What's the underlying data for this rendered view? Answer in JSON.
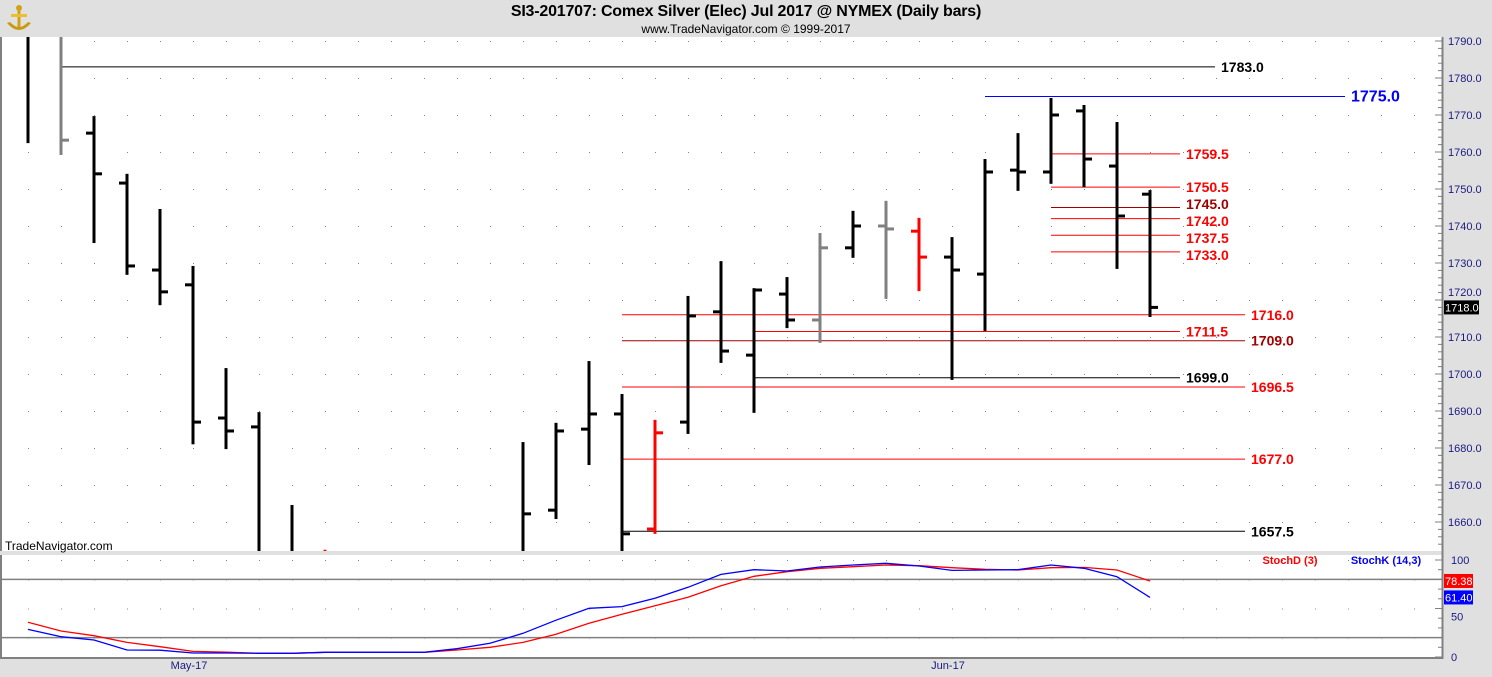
{
  "header": {
    "title": "SI3-201707:  Comex Silver (Elec) Jul 2017 @ NYMEX  (Daily bars)",
    "subtitle": "www.TradeNavigator.com © 1999-2017",
    "logo_icon": "gold-anchor-logo-icon"
  },
  "watermark": "TradeNavigator.com",
  "colors": {
    "up_bar": "#000000",
    "gray_bar": "#808080",
    "red_bar": "#ff0000",
    "stoch_k": "#0000ff",
    "stoch_d": "#ff0000",
    "axis_text": "#1a1a80"
  },
  "chart_data": [
    {
      "type": "ohlc",
      "ylim": [
        1652,
        1792
      ],
      "yticks": [
        1660,
        1670,
        1680,
        1690,
        1700,
        1710,
        1720,
        1730,
        1740,
        1750,
        1760,
        1770,
        1780,
        1790
      ],
      "ytick_labels": [
        "1660.0",
        "1670.0",
        "1680.0",
        "1690.0",
        "1700.0",
        "1710.0",
        "1720.0",
        "1730.0",
        "1740.0",
        "1750.0",
        "1760.0",
        "1770.0",
        "1780.0",
        "1790.0"
      ],
      "last_price_label": "1718.0",
      "x_labels": [
        {
          "bar": 5,
          "text": "May-17"
        },
        {
          "bar": 28,
          "text": "Jun-17"
        }
      ],
      "grid": "dotted",
      "bars": [
        {
          "o": null,
          "h": null,
          "l": 1762.4,
          "c": null,
          "color": "black"
        },
        {
          "o": null,
          "h": null,
          "l": 1759.2,
          "c": 1763.2,
          "color": "gray"
        },
        {
          "o": 1765.1,
          "h": 1769.7,
          "l": 1735.4,
          "c": 1754.1,
          "color": "black"
        },
        {
          "o": 1751.6,
          "h": 1754.1,
          "l": 1726.8,
          "c": 1729.2,
          "color": "black"
        },
        {
          "o": 1728.1,
          "h": 1744.6,
          "l": 1718.6,
          "c": 1722.2,
          "color": "black"
        },
        {
          "o": 1724.1,
          "h": 1729.2,
          "l": 1681.0,
          "c": 1687.0,
          "color": "black"
        },
        {
          "o": 1688.1,
          "h": 1701.6,
          "l": 1679.7,
          "c": 1684.6,
          "color": "black"
        },
        {
          "o": 1685.7,
          "h": 1689.7,
          "l": null,
          "c": null,
          "color": "black"
        },
        {
          "o": null,
          "h": 1664.6,
          "l": null,
          "c": null,
          "color": "black"
        },
        {
          "o": null,
          "h": 1652.5,
          "l": null,
          "c": null,
          "color": "red"
        },
        {
          "o": null,
          "h": null,
          "l": null,
          "c": null,
          "color": "black"
        },
        {
          "o": null,
          "h": null,
          "l": null,
          "c": null,
          "color": "black"
        },
        {
          "o": null,
          "h": null,
          "l": null,
          "c": null,
          "color": "black"
        },
        {
          "o": null,
          "h": null,
          "l": null,
          "c": null,
          "color": "black"
        },
        {
          "o": null,
          "h": null,
          "l": null,
          "c": null,
          "color": "black"
        },
        {
          "o": null,
          "h": 1681.6,
          "l": null,
          "c": 1662.2,
          "color": "black"
        },
        {
          "o": 1663.2,
          "h": 1686.8,
          "l": 1660.8,
          "c": 1684.6,
          "color": "black"
        },
        {
          "o": 1685.1,
          "h": 1703.5,
          "l": 1675.4,
          "c": 1689.2,
          "color": "black"
        },
        {
          "o": 1689.2,
          "h": 1694.6,
          "l": null,
          "c": 1656.8,
          "color": "black"
        },
        {
          "o": 1658.1,
          "h": 1687.6,
          "l": 1656.8,
          "c": 1684.1,
          "color": "red"
        },
        {
          "o": 1687.0,
          "h": 1721.1,
          "l": 1683.8,
          "c": 1715.7,
          "color": "black"
        },
        {
          "o": 1716.8,
          "h": 1730.5,
          "l": 1703.0,
          "c": 1706.2,
          "color": "black"
        },
        {
          "o": 1705.1,
          "h": 1723.2,
          "l": 1689.5,
          "c": 1722.7,
          "color": "black"
        },
        {
          "o": 1721.6,
          "h": 1726.2,
          "l": 1712.4,
          "c": 1714.6,
          "color": "black"
        },
        {
          "o": 1714.6,
          "h": 1738.1,
          "l": 1708.4,
          "c": 1734.1,
          "color": "gray"
        },
        {
          "o": 1734.1,
          "h": 1744.1,
          "l": 1731.4,
          "c": 1740.0,
          "color": "black"
        },
        {
          "o": 1740.0,
          "h": 1746.8,
          "l": 1720.3,
          "c": 1739.2,
          "color": "gray"
        },
        {
          "o": 1738.6,
          "h": 1742.2,
          "l": 1722.4,
          "c": 1731.6,
          "color": "red"
        },
        {
          "o": 1731.6,
          "h": 1737.0,
          "l": 1698.4,
          "c": 1728.1,
          "color": "black"
        },
        {
          "o": 1727.0,
          "h": 1758.1,
          "l": 1711.6,
          "c": 1754.6,
          "color": "black"
        },
        {
          "o": 1755.1,
          "h": 1765.1,
          "l": 1749.5,
          "c": 1754.6,
          "color": "black"
        },
        {
          "o": 1754.6,
          "h": 1774.6,
          "l": 1751.4,
          "c": 1770.0,
          "color": "black"
        },
        {
          "o": 1771.1,
          "h": 1772.7,
          "l": 1750.5,
          "c": 1758.1,
          "color": "black"
        },
        {
          "o": 1756.2,
          "h": 1768.1,
          "l": 1728.4,
          "c": 1742.7,
          "color": "black"
        },
        {
          "o": 1748.6,
          "h": 1749.7,
          "l": 1715.4,
          "c": 1718.0,
          "color": "black"
        }
      ],
      "levels": [
        {
          "value": 1783.0,
          "label": "1783.0",
          "color": "#000000"
        },
        {
          "value": 1775.0,
          "label": "1775.0",
          "color": "#0000ff"
        },
        {
          "value": 1759.5,
          "label": "1759.5",
          "color": "#ff0000"
        },
        {
          "value": 1750.5,
          "label": "1750.5",
          "color": "#ff0000"
        },
        {
          "value": 1745.0,
          "label": "1745.0",
          "color": "#a00000"
        },
        {
          "value": 1742.0,
          "label": "1742.0",
          "color": "#ff0000"
        },
        {
          "value": 1737.5,
          "label": "1737.5",
          "color": "#ff0000"
        },
        {
          "value": 1733.0,
          "label": "1733.0",
          "color": "#ff0000"
        },
        {
          "value": 1716.0,
          "label": "1716.0",
          "color": "#ff0000"
        },
        {
          "value": 1711.5,
          "label": "1711.5",
          "color": "#ff0000"
        },
        {
          "value": 1709.0,
          "label": "1709.0",
          "color": "#a00000"
        },
        {
          "value": 1699.0,
          "label": "1699.0",
          "color": "#000000"
        },
        {
          "value": 1696.5,
          "label": "1696.5",
          "color": "#ff0000"
        },
        {
          "value": 1677.0,
          "label": "1677.0",
          "color": "#ff0000"
        },
        {
          "value": 1657.5,
          "label": "1657.5",
          "color": "#000000"
        }
      ]
    },
    {
      "type": "line",
      "ylim": [
        0,
        100
      ],
      "yticks": [
        0,
        50,
        100
      ],
      "ytick_labels": [
        "0",
        "50",
        "100"
      ],
      "reference_lines": [
        20,
        80
      ],
      "series": [
        {
          "name": "StochD (3)",
          "color": "#ff0000",
          "last_label": "78.38",
          "values": [
            35.8,
            26.8,
            22.0,
            15.1,
            10.6,
            5.8,
            5.0,
            3.8,
            3.8,
            4.8,
            4.8,
            4.8,
            4.8,
            7.2,
            10.0,
            15.1,
            23.4,
            34.7,
            44.0,
            52.9,
            61.5,
            73.5,
            83.2,
            87.9,
            91.4,
            93.1,
            94.8,
            94.1,
            92.1,
            90.4,
            89.7,
            92.1,
            92.4,
            89.7,
            78.38
          ]
        },
        {
          "name": "StochK (14,3)",
          "color": "#0000ff",
          "last_label": "61.40",
          "values": [
            28.5,
            20.9,
            17.5,
            7.2,
            7.0,
            4.1,
            4.1,
            3.8,
            3.8,
            4.8,
            4.8,
            4.8,
            4.8,
            8.6,
            14.1,
            24.4,
            37.9,
            50.2,
            52.0,
            60.5,
            71.9,
            85.2,
            90.0,
            88.7,
            92.8,
            94.8,
            96.6,
            93.8,
            89.3,
            89.7,
            90.0,
            94.8,
            91.4,
            82.8,
            61.4
          ]
        }
      ]
    }
  ]
}
